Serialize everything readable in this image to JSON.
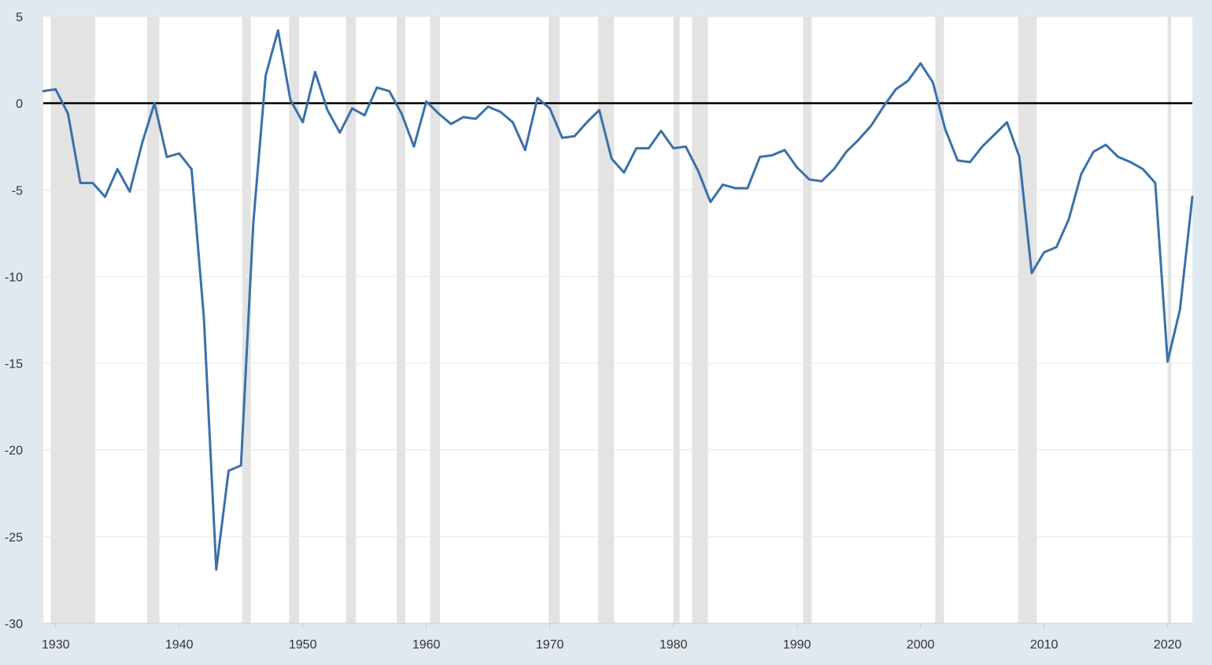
{
  "chart_data": {
    "type": "line",
    "title": "",
    "xlabel": "",
    "ylabel": "",
    "xlim": [
      1929,
      2022
    ],
    "ylim": [
      -30,
      5
    ],
    "x_ticks": [
      1930,
      1940,
      1950,
      1960,
      1970,
      1980,
      1990,
      2000,
      2010,
      2020
    ],
    "y_ticks": [
      5,
      0,
      -5,
      -10,
      -15,
      -20,
      -25,
      -30
    ],
    "grid": true,
    "legend": "none",
    "colors": {
      "line": "#3b70a8",
      "recession": "#e3e3e3",
      "zero_line": "#000000",
      "plot_bg": "#ffffff",
      "page_bg": "#e1e9f0"
    },
    "recessions": [
      [
        1929.6,
        1933.2
      ],
      [
        1937.4,
        1938.4
      ],
      [
        1945.1,
        1945.8
      ],
      [
        1948.9,
        1949.7
      ],
      [
        1953.5,
        1954.3
      ],
      [
        1957.6,
        1958.3
      ],
      [
        1960.3,
        1961.1
      ],
      [
        1969.9,
        1970.8
      ],
      [
        1973.9,
        1975.2
      ],
      [
        1980.0,
        1980.5
      ],
      [
        1981.5,
        1982.8
      ],
      [
        1990.5,
        1991.2
      ],
      [
        2001.2,
        2001.9
      ],
      [
        2007.9,
        2009.4
      ],
      [
        2020.0,
        2020.3
      ]
    ],
    "series": [
      {
        "x": [
          1929,
          1930,
          1931,
          1932,
          1933,
          1934,
          1935,
          1936,
          1937,
          1938,
          1939,
          1940,
          1941,
          1942,
          1943,
          1944,
          1945,
          1946,
          1947,
          1948,
          1949,
          1950,
          1951,
          1952,
          1953,
          1954,
          1955,
          1956,
          1957,
          1958,
          1959,
          1960,
          1961,
          1962,
          1963,
          1964,
          1965,
          1966,
          1967,
          1968,
          1969,
          1970,
          1971,
          1972,
          1973,
          1974,
          1975,
          1976,
          1977,
          1978,
          1979,
          1980,
          1981,
          1982,
          1983,
          1984,
          1985,
          1986,
          1987,
          1988,
          1989,
          1990,
          1991,
          1992,
          1993,
          1994,
          1995,
          1996,
          1997,
          1998,
          1999,
          2000,
          2001,
          2002,
          2003,
          2004,
          2005,
          2006,
          2007,
          2008,
          2009,
          2010,
          2011,
          2012,
          2013,
          2014,
          2015,
          2016,
          2017,
          2018,
          2019,
          2020,
          2021,
          2022
        ],
        "values": [
          0.7,
          0.8,
          -0.6,
          -4.6,
          -4.6,
          -5.4,
          -3.8,
          -5.1,
          -2.3,
          0.0,
          -3.1,
          -2.9,
          -3.8,
          -12.4,
          -26.9,
          -21.2,
          -20.9,
          -6.9,
          1.6,
          4.2,
          0.2,
          -1.1,
          1.8,
          -0.4,
          -1.7,
          -0.3,
          -0.7,
          0.9,
          0.7,
          -0.6,
          -2.5,
          0.1,
          -0.6,
          -1.2,
          -0.8,
          -0.9,
          -0.2,
          -0.5,
          -1.1,
          -2.7,
          0.3,
          -0.3,
          -2.0,
          -1.9,
          -1.1,
          -0.4,
          -3.2,
          -4.0,
          -2.6,
          -2.6,
          -1.6,
          -2.6,
          -2.5,
          -3.9,
          -5.7,
          -4.7,
          -4.9,
          -4.9,
          -3.1,
          -3.0,
          -2.7,
          -3.7,
          -4.4,
          -4.5,
          -3.8,
          -2.8,
          -2.1,
          -1.3,
          -0.2,
          0.8,
          1.3,
          2.3,
          1.2,
          -1.5,
          -3.3,
          -3.4,
          -2.5,
          -1.8,
          -1.1,
          -3.1,
          -9.8,
          -8.6,
          -8.3,
          -6.7,
          -4.1,
          -2.8,
          -2.4,
          -3.1,
          -3.4,
          -3.8,
          -4.6,
          -14.9,
          -11.9,
          -5.4
        ]
      }
    ]
  }
}
